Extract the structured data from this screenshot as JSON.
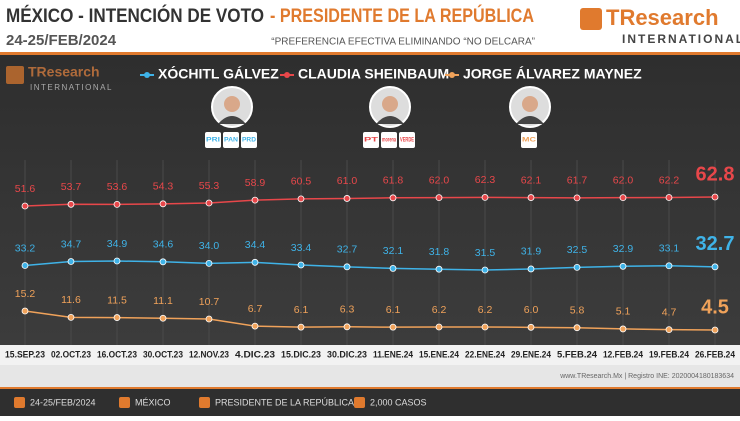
{
  "chart_data": {
    "type": "line",
    "title": "MÉXICO - INTENCIÓN DE VOTO",
    "title_highlight": "- PRESIDENTE DE LA REPÚBLICA",
    "subtitle": "24-25/FEB/2024",
    "note": "“PREFERENCIA EFECTIVA ELIMINANDO “NO DELCARA”",
    "brand": "TResearch",
    "brand_sub": "INTERNATIONAL",
    "categories": [
      "15.SEP.23",
      "02.OCT.23",
      "16.OCT.23",
      "30.OCT.23",
      "12.NOV.23",
      "4.DIC.23",
      "15.DIC.23",
      "30.DIC.23",
      "11.ENE.24",
      "15.ENE.24",
      "22.ENE.24",
      "29.ENE.24",
      "5.FEB.24",
      "12.FEB.24",
      "19.FEB.24",
      "26.FEB.24"
    ],
    "series": [
      {
        "name": "XÓCHITL GÁLVEZ",
        "color": "#3fb3e8",
        "parties": [
          "PRI",
          "PAN",
          "PRD"
        ],
        "values": [
          33.2,
          34.7,
          34.9,
          34.6,
          34.0,
          34.4,
          33.4,
          32.7,
          32.1,
          31.8,
          31.5,
          31.9,
          32.5,
          32.9,
          33.1,
          32.7
        ],
        "value_labels": [
          "33.2",
          "34.7",
          "34.9",
          "34.6",
          "34.0",
          "34.4",
          "33.4",
          "32.7",
          "32.1",
          "31.8",
          "31.5",
          "31.9",
          "32.5",
          "32.9",
          "33.1",
          "32.7"
        ]
      },
      {
        "name": "CLAUDIA SHEINBAUM",
        "color": "#e8474a",
        "parties": [
          "PT",
          "morena",
          "VERDE"
        ],
        "values": [
          51.6,
          53.7,
          53.6,
          54.3,
          55.3,
          58.9,
          60.5,
          61.0,
          61.8,
          62.0,
          62.3,
          62.1,
          61.7,
          62.0,
          62.2,
          62.8
        ],
        "value_labels": [
          "51.6",
          "53.7",
          "53.6",
          "54.3",
          "55.3",
          "58.9",
          "60.5",
          "61.0",
          "61.8",
          "62.0",
          "62.3",
          "62.1",
          "61.7",
          "62.0",
          "62.2",
          "62.8"
        ]
      },
      {
        "name": "JORGE ÁLVAREZ MAYNEZ",
        "color": "#f0a25a",
        "parties": [
          "MC"
        ],
        "values": [
          15.2,
          11.6,
          11.5,
          11.1,
          10.7,
          6.7,
          6.1,
          6.3,
          6.1,
          6.2,
          6.2,
          6.0,
          5.8,
          5.1,
          4.7,
          4.5
        ],
        "value_labels": [
          "15.2",
          "11.6",
          "11.5",
          "11.1",
          "10.7",
          "6.7",
          "6.1",
          "6.3",
          "6.1",
          "6.2",
          "6.2",
          "6.0",
          "5.8",
          "5.1",
          "4.7",
          "4.5"
        ]
      }
    ],
    "source": "www.TResearch.Mx | Registro INE: 2020004180183634",
    "footer": [
      "24-25/FEB/2024",
      "MÉXICO",
      "PRESIDENTE DE LA REPÚBLICA",
      "2,000 CASOS"
    ]
  }
}
